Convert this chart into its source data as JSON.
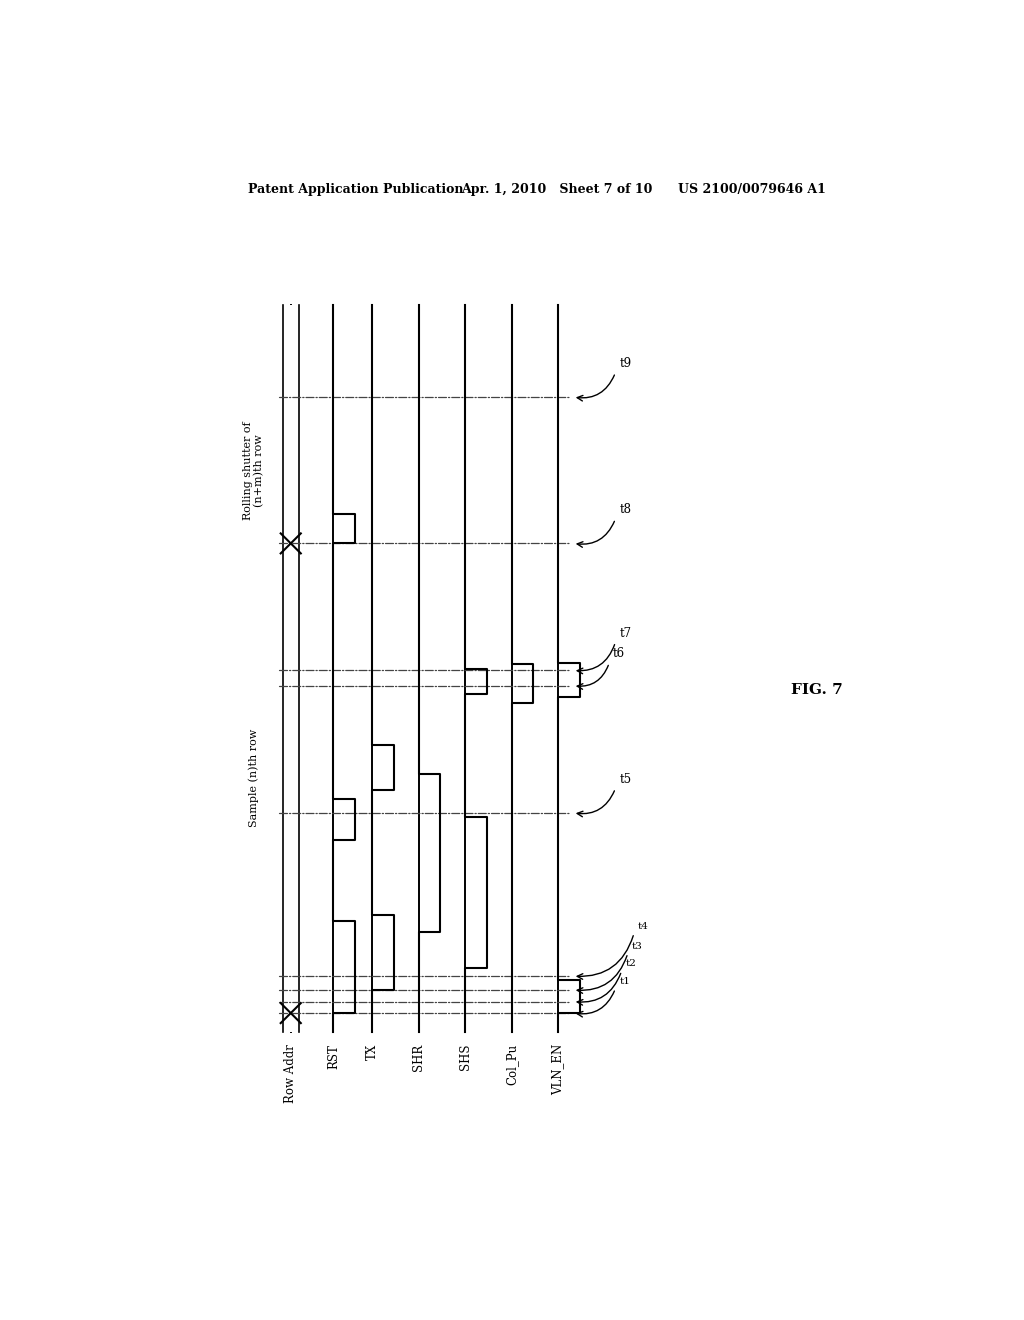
{
  "header_left": "Patent Application Publication",
  "header_mid": "Apr. 1, 2010   Sheet 7 of 10",
  "header_right": "US 2100/0079646 A1",
  "fig_label": "FIG. 7",
  "signals": [
    "Row Addr",
    "RST",
    "TX",
    "SHR",
    "SHS",
    "Col_Pu",
    "VLN_EN"
  ],
  "time_labels": [
    "t1",
    "t2",
    "t3",
    "t4",
    "t5",
    "t6",
    "t7",
    "t8",
    "t9"
  ],
  "note1": "Rolling shutter of\n(n+m)th row",
  "note2": "Sample (n)th row",
  "bg_color": "#ffffff",
  "line_color": "#000000"
}
